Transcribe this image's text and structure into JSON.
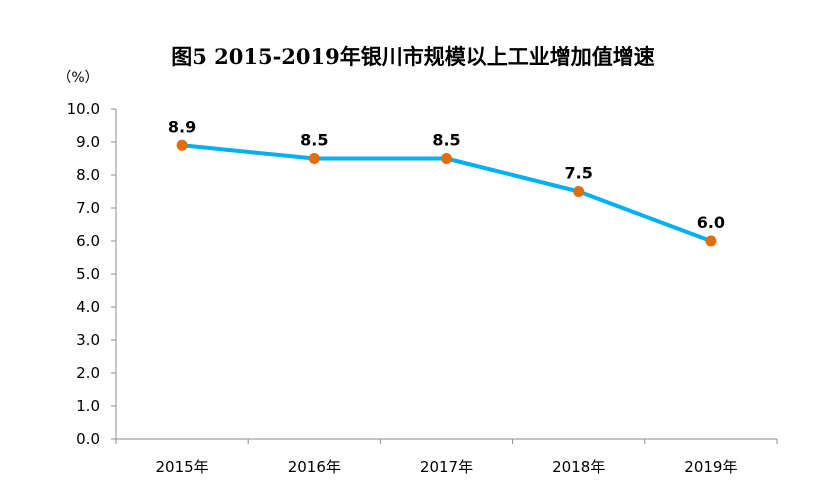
{
  "chart_data": {
    "type": "line",
    "title": "图5   2015-2019年银川市规模以上工业增加值增速",
    "unit_label": "（%）",
    "categories": [
      "2015年",
      "2016年",
      "2017年",
      "2018年",
      "2019年"
    ],
    "series": [
      {
        "values": [
          8.9,
          8.5,
          8.5,
          7.5,
          6.0
        ],
        "data_labels": [
          "8.9",
          "8.5",
          "8.5",
          "7.5",
          "6.0"
        ]
      }
    ],
    "ylim": [
      0,
      10
    ],
    "y_ticks": [
      "0.0",
      "1.0",
      "2.0",
      "3.0",
      "4.0",
      "5.0",
      "6.0",
      "7.0",
      "8.0",
      "9.0",
      "10.0"
    ],
    "grid": false,
    "legend": "none",
    "line_color": "#00B0F0",
    "marker_color": "#E46C0A"
  }
}
